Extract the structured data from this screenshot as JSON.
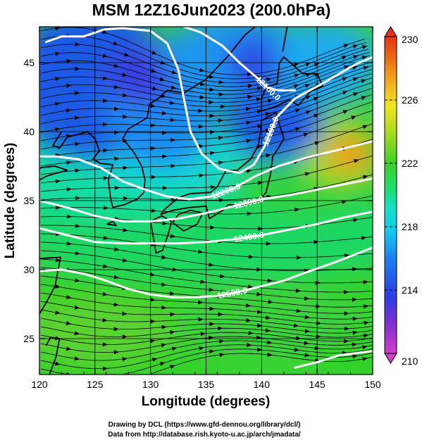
{
  "chart_data": {
    "type": "heatmap",
    "title": "MSM 12Z16Jun2023 (200.0hPa)",
    "xlabel": "Longitude (degrees)",
    "ylabel": "Latitude  (degrees)",
    "xlim": [
      120,
      150
    ],
    "ylim": [
      22.4,
      47.6
    ],
    "x_ticks": [
      120,
      125,
      130,
      135,
      140,
      145,
      150
    ],
    "y_ticks": [
      25,
      30,
      35,
      40,
      45
    ],
    "colorbar": {
      "min": 210,
      "max": 230,
      "ticks": [
        210,
        214,
        218,
        222,
        226,
        230
      ],
      "colors": [
        "#d23cc8",
        "#7a2fd0",
        "#1e46e6",
        "#1e96f0",
        "#14e0e0",
        "#1edc6e",
        "#3cd228",
        "#aadc1e",
        "#f0e61e",
        "#f0aa1e",
        "#eb6414",
        "#e63214"
      ]
    },
    "contours": [
      {
        "label": "12100.0",
        "points": [
          [
            120.6,
            46.5
          ],
          [
            122.0,
            46.9
          ],
          [
            124.0,
            46.9
          ],
          [
            125.8,
            47.4
          ],
          [
            127.5,
            47.5
          ],
          [
            130.0,
            47.3
          ],
          [
            131.5,
            46.4
          ],
          [
            132.5,
            44.5
          ],
          [
            133.0,
            42.4
          ],
          [
            133.6,
            40.0
          ],
          [
            134.6,
            38.4
          ],
          [
            136.2,
            37.3
          ],
          [
            138.0,
            37.0
          ],
          [
            139.3,
            37.6
          ],
          [
            140.3,
            39.0
          ],
          [
            141.3,
            41.0
          ],
          [
            143.0,
            42.4
          ],
          [
            145.5,
            43.5
          ],
          [
            148.5,
            44.9
          ],
          [
            150.0,
            45.4
          ]
        ]
      },
      {
        "label": "12100.0",
        "points": [
          [
            133.0,
            47.6
          ],
          [
            134.5,
            47.2
          ],
          [
            136.5,
            46.2
          ],
          [
            138.0,
            45.0
          ],
          [
            139.6,
            43.9
          ],
          [
            140.5,
            43.2
          ],
          [
            141.5,
            43.0
          ],
          [
            143.0,
            43.0
          ]
        ]
      },
      {
        "label": "12200.0",
        "points": [
          [
            120.0,
            38.2
          ],
          [
            121.5,
            38.2
          ],
          [
            123.5,
            38.0
          ],
          [
            125.5,
            37.4
          ],
          [
            127.5,
            36.4
          ],
          [
            129.5,
            35.8
          ],
          [
            131.5,
            35.3
          ],
          [
            133.5,
            35.1
          ],
          [
            135.5,
            35.3
          ],
          [
            137.5,
            35.9
          ],
          [
            139.5,
            36.8
          ],
          [
            141.5,
            37.5
          ],
          [
            144.0,
            38.1
          ],
          [
            146.5,
            38.6
          ],
          [
            150.0,
            39.3
          ]
        ]
      },
      {
        "label": "12300.0",
        "points": [
          [
            120.0,
            35.0
          ],
          [
            122.5,
            34.5
          ],
          [
            125.0,
            33.9
          ],
          [
            127.5,
            33.5
          ],
          [
            130.0,
            33.5
          ],
          [
            132.5,
            33.7
          ],
          [
            135.0,
            34.1
          ],
          [
            137.5,
            34.6
          ],
          [
            140.0,
            35.1
          ],
          [
            142.5,
            35.4
          ],
          [
            145.0,
            35.8
          ],
          [
            147.5,
            36.2
          ],
          [
            150.0,
            36.6
          ]
        ]
      },
      {
        "label": "12400.0",
        "points": [
          [
            120.0,
            33.0
          ],
          [
            122.5,
            32.5
          ],
          [
            125.0,
            32.0
          ],
          [
            127.5,
            31.9
          ],
          [
            130.0,
            31.9
          ],
          [
            132.5,
            31.9
          ],
          [
            135.0,
            32.0
          ],
          [
            137.5,
            32.2
          ],
          [
            140.0,
            32.5
          ],
          [
            142.5,
            32.9
          ],
          [
            145.0,
            33.3
          ],
          [
            147.5,
            33.8
          ],
          [
            150.0,
            34.2
          ]
        ]
      },
      {
        "label": "12500.0",
        "points": [
          [
            120.0,
            29.9
          ],
          [
            122.0,
            30.0
          ],
          [
            124.0,
            29.7
          ],
          [
            126.0,
            29.2
          ],
          [
            128.0,
            28.6
          ],
          [
            130.0,
            28.2
          ],
          [
            132.0,
            28.0
          ],
          [
            134.0,
            28.0
          ],
          [
            136.0,
            28.1
          ],
          [
            138.0,
            28.4
          ],
          [
            140.0,
            28.8
          ],
          [
            142.0,
            29.2
          ],
          [
            144.0,
            29.8
          ],
          [
            146.5,
            30.5
          ],
          [
            150.0,
            31.6
          ]
        ]
      },
      {
        "label": "",
        "points": [
          [
            143.0,
            22.9
          ],
          [
            145.0,
            23.3
          ],
          [
            147.0,
            23.8
          ],
          [
            149.0,
            24.0
          ],
          [
            150.0,
            24.1
          ]
        ]
      }
    ]
  },
  "credits": {
    "line1": "Drawing by DCL (https://www.gfd-dennou.org/library/dcl/)",
    "line2": "Data from http://database.rish.kyoto-u.ac.jp/arch/jmadata/"
  }
}
